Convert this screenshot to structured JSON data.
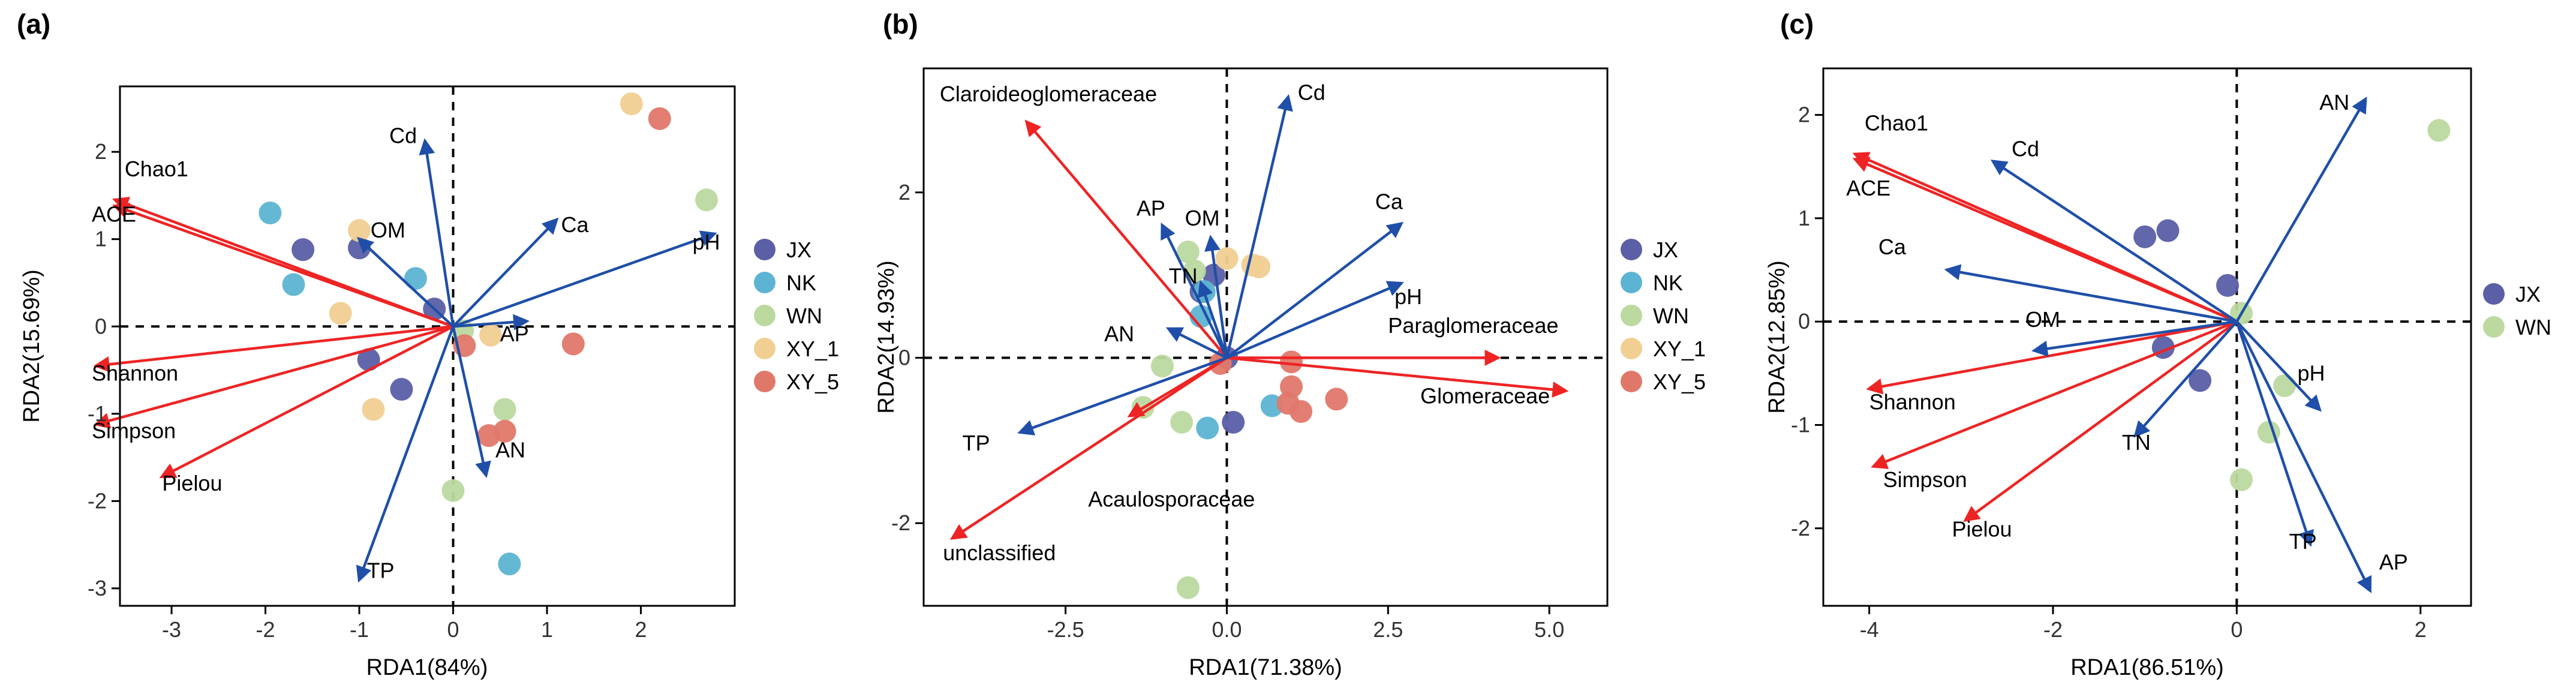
{
  "colors": {
    "arrow_red": "#ee2424",
    "arrow_blue": "#1f4fa8",
    "axis": "#000000",
    "groups": {
      "JX": "#5a5fa6",
      "NK": "#5db4d2",
      "WN": "#bcd9a0",
      "XY_1": "#f1cf92",
      "XY_5": "#e0786a"
    }
  },
  "chart_data": [
    {
      "type": "scatter",
      "panel_label": "(a)",
      "xlabel": "RDA1(84%)",
      "ylabel": "RDA2(15.69%)",
      "xlim": [
        -3.55,
        3.0
      ],
      "ylim": [
        -3.2,
        2.75
      ],
      "xticks": [
        -3,
        -2,
        -1,
        0,
        1,
        2
      ],
      "yticks": [
        -3,
        -2,
        -1,
        0,
        1,
        2
      ],
      "legend": [
        "JX",
        "NK",
        "WN",
        "XY_1",
        "XY_5"
      ],
      "points": [
        {
          "g": "JX",
          "x": -1.6,
          "y": 0.88
        },
        {
          "g": "JX",
          "x": -1.0,
          "y": 0.9
        },
        {
          "g": "JX",
          "x": -0.9,
          "y": -0.38
        },
        {
          "g": "JX",
          "x": -0.55,
          "y": -0.72
        },
        {
          "g": "JX",
          "x": -0.2,
          "y": 0.2
        },
        {
          "g": "NK",
          "x": -1.95,
          "y": 1.3
        },
        {
          "g": "NK",
          "x": -1.7,
          "y": 0.48
        },
        {
          "g": "NK",
          "x": -0.4,
          "y": 0.55
        },
        {
          "g": "NK",
          "x": 0.6,
          "y": -2.72
        },
        {
          "g": "WN",
          "x": 2.7,
          "y": 1.45
        },
        {
          "g": "WN",
          "x": 0.55,
          "y": -0.95
        },
        {
          "g": "WN",
          "x": 0.0,
          "y": -1.88
        },
        {
          "g": "WN",
          "x": 0.1,
          "y": -0.05
        },
        {
          "g": "XY_1",
          "x": -1.0,
          "y": 1.1
        },
        {
          "g": "XY_1",
          "x": -1.2,
          "y": 0.15
        },
        {
          "g": "XY_1",
          "x": -0.85,
          "y": -0.95
        },
        {
          "g": "XY_1",
          "x": 1.9,
          "y": 2.55
        },
        {
          "g": "XY_1",
          "x": 0.4,
          "y": -0.1
        },
        {
          "g": "XY_5",
          "x": 2.2,
          "y": 2.38
        },
        {
          "g": "XY_5",
          "x": 1.28,
          "y": -0.2
        },
        {
          "g": "XY_5",
          "x": 0.55,
          "y": -1.2
        },
        {
          "g": "XY_5",
          "x": 0.38,
          "y": -1.25
        },
        {
          "g": "XY_5",
          "x": 0.12,
          "y": -0.22
        }
      ],
      "arrows": [
        {
          "label": "Chao1",
          "color": "red",
          "x": -3.6,
          "y": 1.45,
          "lx": -3.5,
          "ly": 1.72
        },
        {
          "label": "ACE",
          "color": "red",
          "x": -3.6,
          "y": 1.38,
          "lx": -3.85,
          "ly": 1.2
        },
        {
          "label": "Shannon",
          "color": "red",
          "x": -3.8,
          "y": -0.45,
          "lx": -3.85,
          "ly": -0.62
        },
        {
          "label": "Simpson",
          "color": "red",
          "x": -3.8,
          "y": -1.12,
          "lx": -3.85,
          "ly": -1.28
        },
        {
          "label": "Pielou",
          "color": "red",
          "x": -3.1,
          "y": -1.72,
          "lx": -3.1,
          "ly": -1.88
        },
        {
          "label": "Cd",
          "color": "blue",
          "x": -0.3,
          "y": 2.12,
          "lx": -0.68,
          "ly": 2.1
        },
        {
          "label": "OM",
          "color": "blue",
          "x": -1.0,
          "y": 1.0,
          "lx": -0.88,
          "ly": 1.02
        },
        {
          "label": "Ca",
          "color": "blue",
          "x": 1.1,
          "y": 1.22,
          "lx": 1.15,
          "ly": 1.08
        },
        {
          "label": "pH",
          "color": "blue",
          "x": 2.78,
          "y": 1.06,
          "lx": 2.55,
          "ly": 0.88
        },
        {
          "label": "AP",
          "color": "blue",
          "x": 0.78,
          "y": 0.06,
          "lx": 0.5,
          "ly": -0.17
        },
        {
          "label": "AN",
          "color": "blue",
          "x": 0.35,
          "y": -1.7,
          "lx": 0.45,
          "ly": -1.5
        },
        {
          "label": "TP",
          "color": "blue",
          "x": -1.0,
          "y": -2.9,
          "lx": -0.92,
          "ly": -2.88
        }
      ]
    },
    {
      "type": "scatter",
      "panel_label": "(b)",
      "xlabel": "RDA1(71.38%)",
      "ylabel": "RDA2(14.93%)",
      "xlim": [
        -4.7,
        5.9
      ],
      "ylim": [
        -3.0,
        3.5
      ],
      "xticks": [
        -2.5,
        0.0,
        2.5,
        5.0
      ],
      "yticks": [
        -2,
        0,
        2
      ],
      "legend": [
        "JX",
        "NK",
        "WN",
        "XY_1",
        "XY_5"
      ],
      "points": [
        {
          "g": "JX",
          "x": -0.2,
          "y": 1.0
        },
        {
          "g": "JX",
          "x": 0.0,
          "y": 0.0
        },
        {
          "g": "JX",
          "x": 0.1,
          "y": -0.78
        },
        {
          "g": "JX",
          "x": -0.4,
          "y": 0.8
        },
        {
          "g": "NK",
          "x": -0.4,
          "y": 0.5
        },
        {
          "g": "NK",
          "x": -0.35,
          "y": 0.8
        },
        {
          "g": "NK",
          "x": 0.7,
          "y": -0.58
        },
        {
          "g": "NK",
          "x": -0.3,
          "y": -0.85
        },
        {
          "g": "WN",
          "x": -1.3,
          "y": -0.6
        },
        {
          "g": "WN",
          "x": -1.0,
          "y": -0.1
        },
        {
          "g": "WN",
          "x": -0.6,
          "y": 1.28
        },
        {
          "g": "WN",
          "x": -0.7,
          "y": -0.78
        },
        {
          "g": "WN",
          "x": -0.6,
          "y": -2.78
        },
        {
          "g": "WN",
          "x": -0.5,
          "y": 1.05
        },
        {
          "g": "XY_1",
          "x": 0.4,
          "y": 1.12
        },
        {
          "g": "XY_1",
          "x": 0.0,
          "y": 1.2
        },
        {
          "g": "XY_1",
          "x": 0.5,
          "y": 1.1
        },
        {
          "g": "XY_5",
          "x": 1.0,
          "y": -0.05
        },
        {
          "g": "XY_5",
          "x": 1.0,
          "y": -0.35
        },
        {
          "g": "XY_5",
          "x": 0.95,
          "y": -0.55
        },
        {
          "g": "XY_5",
          "x": 1.15,
          "y": -0.65
        },
        {
          "g": "XY_5",
          "x": 1.7,
          "y": -0.5
        },
        {
          "g": "XY_5",
          "x": -0.1,
          "y": -0.07
        }
      ],
      "arrows": [
        {
          "label": "Claroideoglomeraceae",
          "color": "red",
          "x": -3.1,
          "y": 2.85,
          "lx": -4.45,
          "ly": 3.1
        },
        {
          "label": "unclassified",
          "color": "red",
          "x": -4.25,
          "y": -2.18,
          "lx": -4.4,
          "ly": -2.45
        },
        {
          "label": "Acaulosporaceae",
          "color": "red",
          "x": -1.5,
          "y": -0.7,
          "lx": -2.15,
          "ly": -1.8
        },
        {
          "label": "Paraglomeraceae",
          "color": "red",
          "x": 4.2,
          "y": 0.0,
          "lx": 2.5,
          "ly": 0.3
        },
        {
          "label": "Glomeraceae",
          "color": "red",
          "x": 5.25,
          "y": -0.4,
          "lx": 3.0,
          "ly": -0.55
        },
        {
          "label": "Cd",
          "color": "blue",
          "x": 0.95,
          "y": 3.15,
          "lx": 1.1,
          "ly": 3.12
        },
        {
          "label": "Ca",
          "color": "blue",
          "x": 2.7,
          "y": 1.62,
          "lx": 2.3,
          "ly": 1.8
        },
        {
          "label": "pH",
          "color": "blue",
          "x": 2.7,
          "y": 0.9,
          "lx": 2.6,
          "ly": 0.65
        },
        {
          "label": "AP",
          "color": "blue",
          "x": -1.0,
          "y": 1.6,
          "lx": -1.4,
          "ly": 1.72
        },
        {
          "label": "OM",
          "color": "blue",
          "x": -0.25,
          "y": 1.45,
          "lx": -0.65,
          "ly": 1.6
        },
        {
          "label": "TN",
          "color": "blue",
          "x": -0.4,
          "y": 0.9,
          "lx": -0.9,
          "ly": 0.9
        },
        {
          "label": "AN",
          "color": "blue",
          "x": -0.9,
          "y": 0.35,
          "lx": -1.9,
          "ly": 0.2
        },
        {
          "label": "TP",
          "color": "blue",
          "x": -3.2,
          "y": -0.9,
          "lx": -4.1,
          "ly": -1.12
        }
      ]
    },
    {
      "type": "scatter",
      "panel_label": "(c)",
      "xlabel": "RDA1(86.51%)",
      "ylabel": "RDA2(12.85%)",
      "xlim": [
        -4.5,
        2.55
      ],
      "ylim": [
        -2.75,
        2.45
      ],
      "xticks": [
        -4,
        -2,
        0,
        2
      ],
      "yticks": [
        -2,
        -1,
        0,
        1,
        2
      ],
      "legend": [
        "JX",
        "WN"
      ],
      "points": [
        {
          "g": "JX",
          "x": -1.0,
          "y": 0.82
        },
        {
          "g": "JX",
          "x": -0.75,
          "y": 0.88
        },
        {
          "g": "JX",
          "x": -0.8,
          "y": -0.25
        },
        {
          "g": "JX",
          "x": -0.1,
          "y": 0.35
        },
        {
          "g": "JX",
          "x": -0.4,
          "y": -0.57
        },
        {
          "g": "WN",
          "x": 2.2,
          "y": 1.85
        },
        {
          "g": "WN",
          "x": 0.05,
          "y": 0.08
        },
        {
          "g": "WN",
          "x": 0.52,
          "y": -0.62
        },
        {
          "g": "WN",
          "x": 0.35,
          "y": -1.07
        },
        {
          "g": "WN",
          "x": 0.05,
          "y": -1.53
        }
      ],
      "arrows": [
        {
          "label": "Chao1",
          "color": "red",
          "x": -4.15,
          "y": 1.62,
          "lx": -4.05,
          "ly": 1.85
        },
        {
          "label": "ACE",
          "color": "red",
          "x": -4.15,
          "y": 1.57,
          "lx": -4.25,
          "ly": 1.22
        },
        {
          "label": "Shannon",
          "color": "red",
          "x": -4.0,
          "y": -0.65,
          "lx": -4.0,
          "ly": -0.85
        },
        {
          "label": "Simpson",
          "color": "red",
          "x": -3.95,
          "y": -1.4,
          "lx": -3.85,
          "ly": -1.6
        },
        {
          "label": "Pielou",
          "color": "red",
          "x": -2.95,
          "y": -1.92,
          "lx": -3.1,
          "ly": -2.08
        },
        {
          "label": "Cd",
          "color": "blue",
          "x": -2.65,
          "y": 1.55,
          "lx": -2.45,
          "ly": 1.6
        },
        {
          "label": "Ca",
          "color": "blue",
          "x": -3.15,
          "y": 0.5,
          "lx": -3.9,
          "ly": 0.65
        },
        {
          "label": "OM",
          "color": "blue",
          "x": -2.2,
          "y": -0.28,
          "lx": -2.3,
          "ly": -0.05
        },
        {
          "label": "TN",
          "color": "blue",
          "x": -1.1,
          "y": -1.1,
          "lx": -1.25,
          "ly": -1.24
        },
        {
          "label": "AN",
          "color": "blue",
          "x": 1.4,
          "y": 2.15,
          "lx": 0.9,
          "ly": 2.05
        },
        {
          "label": "pH",
          "color": "blue",
          "x": 0.9,
          "y": -0.85,
          "lx": 0.66,
          "ly": -0.57
        },
        {
          "label": "TP",
          "color": "blue",
          "x": 0.8,
          "y": -2.15,
          "lx": 0.57,
          "ly": -2.2
        },
        {
          "label": "AP",
          "color": "blue",
          "x": 1.45,
          "y": -2.6,
          "lx": 1.55,
          "ly": -2.4
        }
      ]
    }
  ]
}
